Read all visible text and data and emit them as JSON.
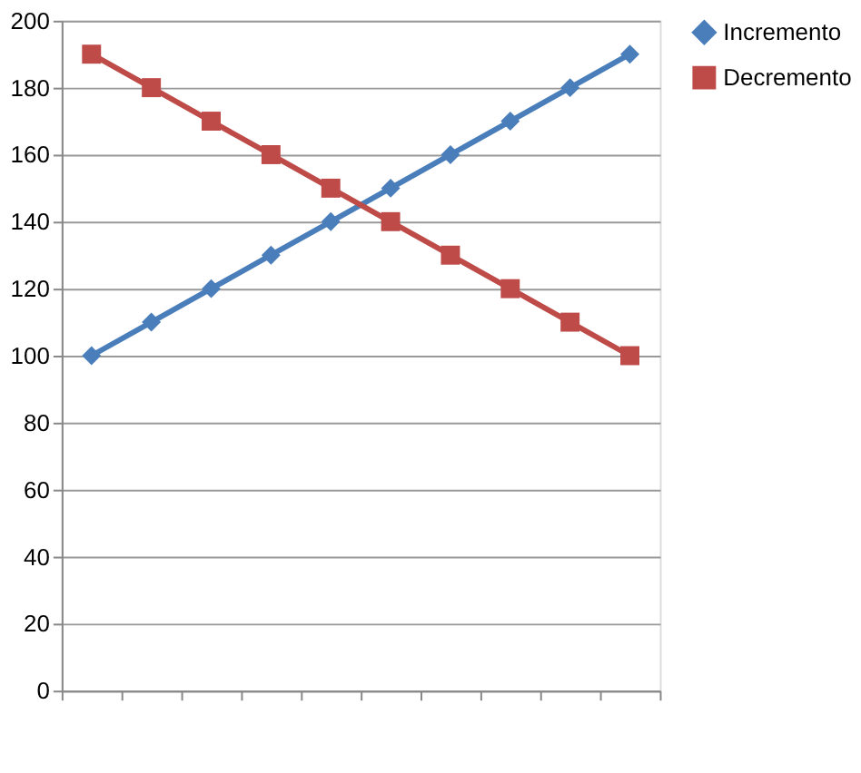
{
  "chart_data": {
    "type": "line",
    "categories": [
      null,
      null,
      null,
      null,
      null,
      null,
      null,
      null,
      null,
      null
    ],
    "series": [
      {
        "name": "Incremento",
        "color": "#4a7ebb",
        "marker": "diamond",
        "values": [
          100,
          110,
          120,
          130,
          140,
          150,
          160,
          170,
          180,
          190
        ]
      },
      {
        "name": "Decremento",
        "color": "#be4b48",
        "marker": "square",
        "values": [
          190,
          180,
          170,
          160,
          150,
          140,
          130,
          120,
          110,
          100
        ]
      }
    ],
    "ylim": [
      0,
      200
    ],
    "yticks": [
      0,
      20,
      40,
      60,
      80,
      100,
      120,
      140,
      160,
      180,
      200
    ],
    "grid": "y",
    "legend": "right",
    "tick_labels": "y",
    "line_style": "solid"
  }
}
